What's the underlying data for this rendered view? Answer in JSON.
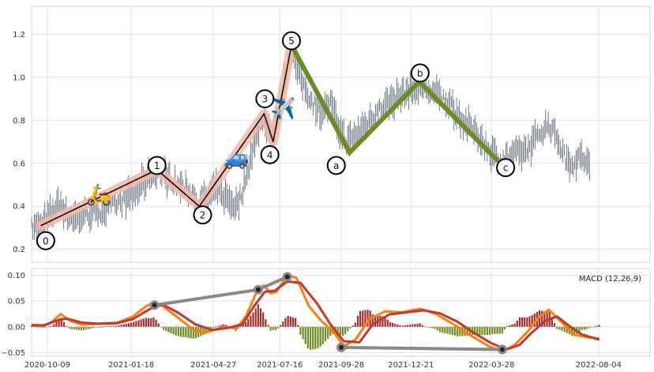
{
  "chart_data": [
    {
      "type": "line",
      "panel": "price",
      "ylim": [
        0.14,
        1.33
      ],
      "yticks": [
        0.2,
        0.4,
        0.6,
        0.8,
        1.0,
        1.2
      ],
      "ytick_labels": [
        "0.2",
        "0.4",
        "0.6",
        "0.8",
        "1.0",
        "1.2"
      ],
      "grid": true,
      "price_series": [
        [
          "2020-09-20",
          0.3
        ],
        [
          "2020-10-01",
          0.31
        ],
        [
          "2020-10-10",
          0.35
        ],
        [
          "2020-10-20",
          0.4
        ],
        [
          "2020-10-25",
          0.42
        ],
        [
          "2020-11-01",
          0.36
        ],
        [
          "2020-11-15",
          0.35
        ],
        [
          "2020-12-01",
          0.37
        ],
        [
          "2020-12-20",
          0.39
        ],
        [
          "2021-01-10",
          0.43
        ],
        [
          "2021-01-25",
          0.47
        ],
        [
          "2021-02-10",
          0.55
        ],
        [
          "2021-02-18",
          0.57
        ],
        [
          "2021-03-01",
          0.54
        ],
        [
          "2021-03-15",
          0.5
        ],
        [
          "2021-04-01",
          0.46
        ],
        [
          "2021-04-10",
          0.41
        ],
        [
          "2021-04-20",
          0.44
        ],
        [
          "2021-05-01",
          0.48
        ],
        [
          "2021-05-15",
          0.43
        ],
        [
          "2021-05-25",
          0.4
        ],
        [
          "2021-06-01",
          0.47
        ],
        [
          "2021-06-10",
          0.62
        ],
        [
          "2021-06-20",
          0.75
        ],
        [
          "2021-06-27",
          0.82
        ],
        [
          "2021-07-03",
          0.76
        ],
        [
          "2021-07-08",
          0.7
        ],
        [
          "2021-07-15",
          0.86
        ],
        [
          "2021-07-25",
          1.05
        ],
        [
          "2021-07-30",
          1.12
        ],
        [
          "2021-08-05",
          1.04
        ],
        [
          "2021-08-15",
          0.95
        ],
        [
          "2021-08-25",
          0.88
        ],
        [
          "2021-09-05",
          0.84
        ],
        [
          "2021-09-15",
          0.88
        ],
        [
          "2021-09-25",
          0.76
        ],
        [
          "2021-10-05",
          0.7
        ],
        [
          "2021-10-15",
          0.73
        ],
        [
          "2021-11-01",
          0.8
        ],
        [
          "2021-11-15",
          0.86
        ],
        [
          "2021-12-01",
          0.9
        ],
        [
          "2021-12-15",
          0.93
        ],
        [
          "2022-01-01",
          0.96
        ],
        [
          "2022-01-20",
          0.92
        ],
        [
          "2022-02-05",
          0.88
        ],
        [
          "2022-02-20",
          0.8
        ],
        [
          "2022-03-10",
          0.74
        ],
        [
          "2022-03-25",
          0.66
        ],
        [
          "2022-04-10",
          0.61
        ],
        [
          "2022-04-25",
          0.64
        ],
        [
          "2022-05-10",
          0.66
        ],
        [
          "2022-05-25",
          0.74
        ],
        [
          "2022-06-05",
          0.78
        ],
        [
          "2022-06-15",
          0.72
        ],
        [
          "2022-06-25",
          0.62
        ],
        [
          "2022-07-05",
          0.6
        ],
        [
          "2022-07-15",
          0.63
        ],
        [
          "2022-07-25",
          0.58
        ]
      ],
      "wave_points": [
        {
          "label": "0",
          "date": "2020-10-01",
          "value": 0.31
        },
        {
          "label": "1",
          "date": "2021-02-18",
          "value": 0.57
        },
        {
          "label": "2",
          "date": "2021-04-10",
          "value": 0.4
        },
        {
          "label": "3",
          "date": "2021-06-27",
          "value": 0.83
        },
        {
          "label": "4",
          "date": "2021-07-08",
          "value": 0.7
        },
        {
          "label": "5",
          "date": "2021-07-30",
          "value": 1.15
        },
        {
          "label": "a",
          "date": "2021-10-08",
          "value": 0.65
        },
        {
          "label": "b",
          "date": "2021-12-31",
          "value": 0.98
        },
        {
          "label": "c",
          "date": "2022-04-05",
          "value": 0.61
        }
      ],
      "impulse_labels": [
        "0",
        "1",
        "2",
        "3",
        "4",
        "5"
      ],
      "correction_labels": [
        "a",
        "b",
        "c"
      ],
      "label_positions": [
        {
          "label": "0",
          "date": "2020-10-07",
          "value": 0.24
        },
        {
          "label": "1",
          "date": "2021-02-18",
          "value": 0.59
        },
        {
          "label": "2",
          "date": "2021-04-14",
          "value": 0.36
        },
        {
          "label": "3",
          "date": "2021-06-28",
          "value": 0.9
        },
        {
          "label": "4",
          "date": "2021-07-04",
          "value": 0.64
        },
        {
          "label": "5",
          "date": "2021-07-30",
          "value": 1.17
        },
        {
          "label": "a",
          "date": "2021-09-22",
          "value": 0.59
        },
        {
          "label": "b",
          "date": "2022-01-01",
          "value": 1.02
        },
        {
          "label": "c",
          "date": "2022-04-14",
          "value": 0.58
        }
      ],
      "emojis": [
        {
          "name": "scooter-emoji",
          "glyph": "🛵",
          "date": "2020-12-10",
          "value": 0.46
        },
        {
          "name": "car-emoji",
          "glyph": "🚙",
          "date": "2021-05-25",
          "value": 0.63
        },
        {
          "name": "airplane-emoji",
          "glyph": "✈️",
          "date": "2021-07-20",
          "value": 0.86
        }
      ],
      "colors": {
        "bars": "#4a5a6a",
        "impulse_line": "#000000",
        "impulse_halo": "#f4b9a6",
        "correction_line": "#6b8e23",
        "circle_stroke": "#000000"
      }
    },
    {
      "type": "line",
      "panel": "macd",
      "title": "MACD (12,26,9)",
      "ylim": [
        -0.057,
        0.113
      ],
      "yticks": [
        -0.05,
        0.0,
        0.05,
        0.1
      ],
      "ytick_labels": [
        "−0.05",
        "0.00",
        "0.05",
        "0.10"
      ],
      "x_start": "2020-09-20",
      "x_end": "2022-10-05",
      "xticks": [
        "2020-10-09",
        "2021-01-18",
        "2021-04-27",
        "2021-07-16",
        "2021-09-28",
        "2021-12-21",
        "2022-03-28",
        "2022-08-04"
      ],
      "series": [
        {
          "key": "macd",
          "color": "#ff7f0e",
          "points": [
            [
              "2020-09-20",
              0.004
            ],
            [
              "2020-10-05",
              0.002
            ],
            [
              "2020-10-15",
              0.01
            ],
            [
              "2020-10-25",
              0.025
            ],
            [
              "2020-11-05",
              0.012
            ],
            [
              "2020-11-20",
              0.004
            ],
            [
              "2020-12-10",
              0.006
            ],
            [
              "2021-01-01",
              0.008
            ],
            [
              "2021-01-20",
              0.02
            ],
            [
              "2021-02-05",
              0.04
            ],
            [
              "2021-02-15",
              0.048
            ],
            [
              "2021-02-25",
              0.04
            ],
            [
              "2021-03-15",
              0.018
            ],
            [
              "2021-04-05",
              -0.008
            ],
            [
              "2021-04-20",
              -0.01
            ],
            [
              "2021-05-10",
              0.0
            ],
            [
              "2021-05-25",
              -0.003
            ],
            [
              "2021-06-05",
              0.02
            ],
            [
              "2021-06-20",
              0.075
            ],
            [
              "2021-06-27",
              0.08
            ],
            [
              "2021-07-05",
              0.065
            ],
            [
              "2021-07-12",
              0.068
            ],
            [
              "2021-07-25",
              0.1
            ],
            [
              "2021-08-05",
              0.095
            ],
            [
              "2021-08-20",
              0.04
            ],
            [
              "2021-09-05",
              0.01
            ],
            [
              "2021-09-20",
              -0.012
            ],
            [
              "2021-10-01",
              -0.038
            ],
            [
              "2021-10-15",
              -0.025
            ],
            [
              "2021-11-01",
              0.015
            ],
            [
              "2021-11-20",
              0.03
            ],
            [
              "2021-12-10",
              0.028
            ],
            [
              "2022-01-01",
              0.035
            ],
            [
              "2022-01-20",
              0.025
            ],
            [
              "2022-02-10",
              0.005
            ],
            [
              "2022-03-01",
              -0.015
            ],
            [
              "2022-03-25",
              -0.038
            ],
            [
              "2022-04-10",
              -0.048
            ],
            [
              "2022-04-25",
              -0.035
            ],
            [
              "2022-05-10",
              -0.01
            ],
            [
              "2022-05-25",
              0.02
            ],
            [
              "2022-06-05",
              0.033
            ],
            [
              "2022-06-20",
              0.01
            ],
            [
              "2022-07-05",
              -0.015
            ],
            [
              "2022-07-20",
              -0.02
            ],
            [
              "2022-08-05",
              -0.023
            ]
          ]
        },
        {
          "key": "signal",
          "color": "#c0392b",
          "points": [
            [
              "2020-09-20",
              0.003
            ],
            [
              "2020-10-05",
              0.003
            ],
            [
              "2020-10-20",
              0.012
            ],
            [
              "2020-11-01",
              0.016
            ],
            [
              "2020-11-20",
              0.008
            ],
            [
              "2020-12-10",
              0.006
            ],
            [
              "2021-01-01",
              0.007
            ],
            [
              "2021-01-20",
              0.015
            ],
            [
              "2021-02-10",
              0.035
            ],
            [
              "2021-02-25",
              0.043
            ],
            [
              "2021-03-15",
              0.028
            ],
            [
              "2021-04-05",
              0.005
            ],
            [
              "2021-04-25",
              -0.006
            ],
            [
              "2021-05-15",
              -0.002
            ],
            [
              "2021-06-01",
              0.005
            ],
            [
              "2021-06-15",
              0.04
            ],
            [
              "2021-06-28",
              0.068
            ],
            [
              "2021-07-10",
              0.07
            ],
            [
              "2021-07-25",
              0.088
            ],
            [
              "2021-08-10",
              0.085
            ],
            [
              "2021-08-30",
              0.045
            ],
            [
              "2021-09-15",
              0.005
            ],
            [
              "2021-10-01",
              -0.028
            ],
            [
              "2021-10-20",
              -0.03
            ],
            [
              "2021-11-05",
              0.005
            ],
            [
              "2021-11-25",
              0.024
            ],
            [
              "2021-12-15",
              0.028
            ],
            [
              "2022-01-05",
              0.032
            ],
            [
              "2022-01-25",
              0.026
            ],
            [
              "2022-02-15",
              0.01
            ],
            [
              "2022-03-05",
              -0.01
            ],
            [
              "2022-03-28",
              -0.032
            ],
            [
              "2022-04-15",
              -0.044
            ],
            [
              "2022-05-01",
              -0.035
            ],
            [
              "2022-05-15",
              -0.012
            ],
            [
              "2022-06-01",
              0.012
            ],
            [
              "2022-06-15",
              0.02
            ],
            [
              "2022-07-01",
              0.0
            ],
            [
              "2022-07-15",
              -0.015
            ],
            [
              "2022-08-05",
              -0.025
            ]
          ]
        }
      ],
      "hist_colors": {
        "positive": "#a52a2a",
        "negative": "#6b8e23"
      },
      "divergence_lines": [
        {
          "points": [
            [
              "2021-02-15",
              0.042
            ],
            [
              "2021-06-20",
              0.072
            ],
            [
              "2021-07-25",
              0.097
            ]
          ]
        },
        {
          "points": [
            [
              "2021-09-28",
              -0.04
            ],
            [
              "2022-04-10",
              -0.044
            ]
          ]
        }
      ],
      "divergence_color": "#888888"
    }
  ]
}
